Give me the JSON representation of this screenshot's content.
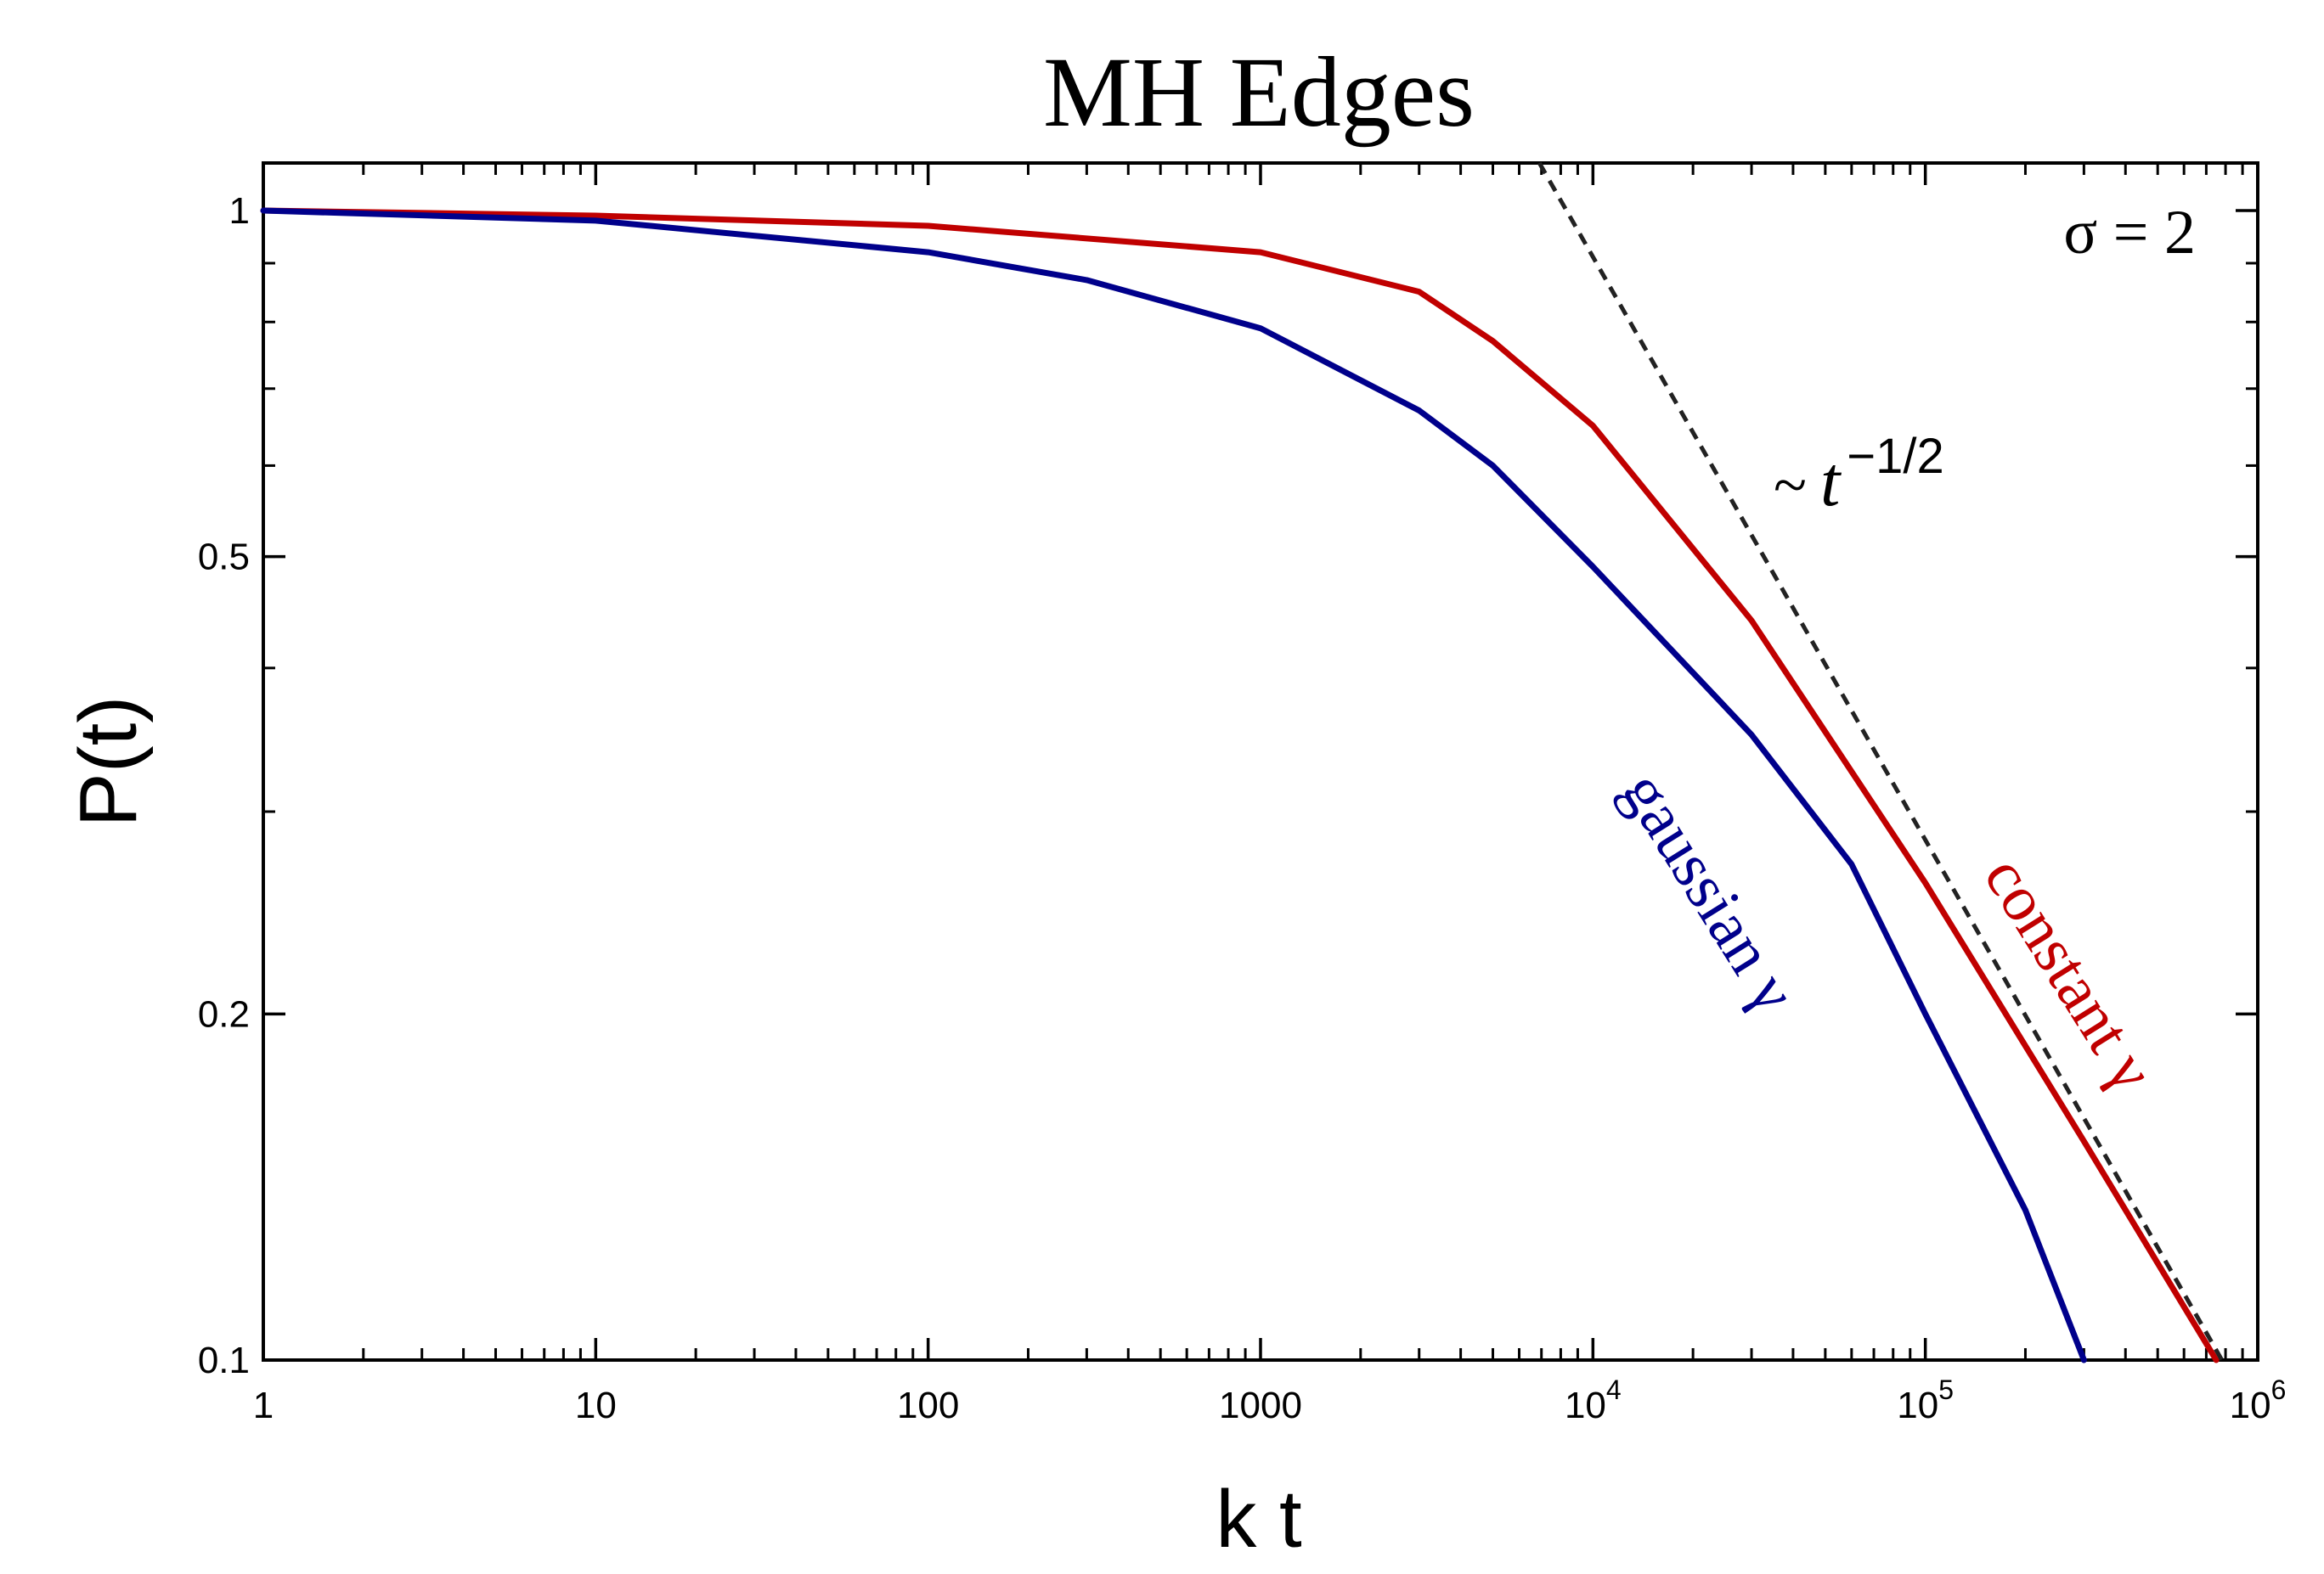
{
  "chart_data": {
    "type": "line",
    "title": "MH Edges",
    "xlabel": "k t",
    "ylabel": "P(t)",
    "xscale": "log",
    "yscale": "log",
    "xlim": [
      1,
      1000000
    ],
    "ylim": [
      0.1,
      1.1
    ],
    "x_ticks": [
      {
        "value": 1,
        "label": "1"
      },
      {
        "value": 10,
        "label": "10"
      },
      {
        "value": 100,
        "label": "100"
      },
      {
        "value": 1000,
        "label": "1000"
      },
      {
        "value": 10000,
        "label": "10",
        "exp": "4"
      },
      {
        "value": 100000,
        "label": "10",
        "exp": "5"
      },
      {
        "value": 1000000,
        "label": "10",
        "exp": "6"
      }
    ],
    "y_ticks": [
      {
        "value": 1,
        "label": "1"
      },
      {
        "value": 0.5,
        "label": "0.5"
      },
      {
        "value": 0.2,
        "label": "0.2"
      },
      {
        "value": 0.1,
        "label": "0.1"
      }
    ],
    "annotations": {
      "sigma": "σ = 2",
      "scaling_prefix": "~",
      "scaling_base": "t",
      "scaling_exp": "−1/2"
    },
    "series": [
      {
        "name": "constant γ",
        "color": "#c00000",
        "x": [
          1,
          10,
          100,
          1000,
          3000,
          5000,
          10000,
          30000,
          100000,
          300000,
          750000
        ],
        "y": [
          1.0,
          0.99,
          0.97,
          0.92,
          0.85,
          0.77,
          0.65,
          0.44,
          0.26,
          0.155,
          0.1
        ]
      },
      {
        "name": "gaussian γ",
        "color": "#00008b",
        "x": [
          1,
          10,
          100,
          300,
          1000,
          3000,
          5000,
          10000,
          30000,
          60000,
          100000,
          200000,
          300000
        ],
        "y": [
          1.0,
          0.98,
          0.92,
          0.87,
          0.79,
          0.67,
          0.6,
          0.49,
          0.35,
          0.27,
          0.2,
          0.135,
          0.1
        ]
      },
      {
        "name": "~ t^-1/2",
        "color": "#222222",
        "style": "dashed",
        "x": [
          6900,
          780000
        ],
        "y": [
          1.1,
          0.1
        ]
      }
    ]
  }
}
